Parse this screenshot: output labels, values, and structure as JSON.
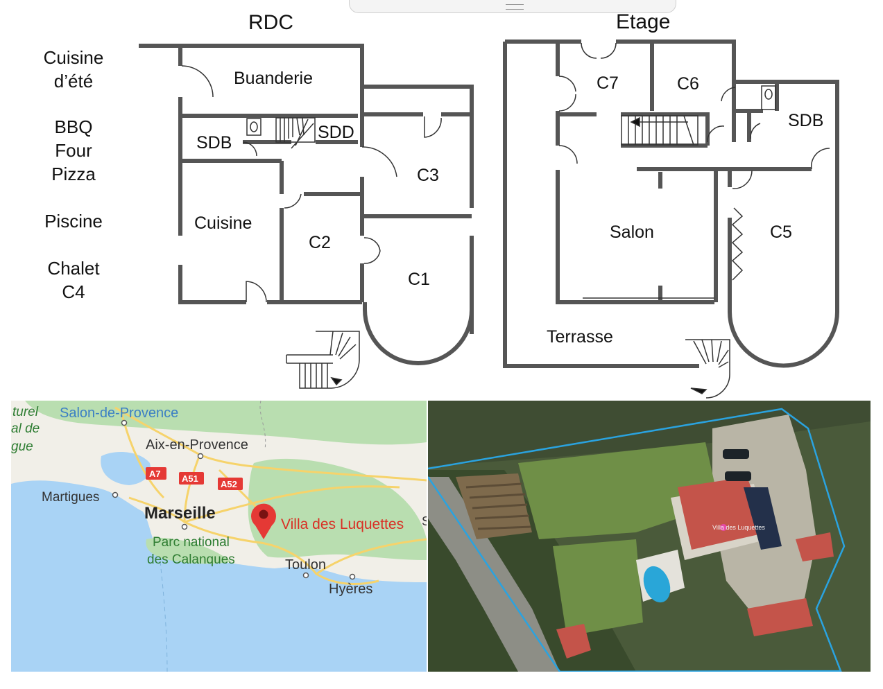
{
  "floorplan": {
    "rdc": {
      "title": "RDC",
      "rooms": {
        "buanderie": "Buanderie",
        "sdb": "SDB",
        "sdd": "SDD",
        "cuisine": "Cuisine",
        "c2": "C2",
        "c3": "C3",
        "c1": "C1"
      }
    },
    "etage": {
      "title": "Etage",
      "rooms": {
        "c7": "C7",
        "c6": "C6",
        "sdb": "SDB",
        "salon": "Salon",
        "c5": "C5",
        "terrasse": "Terrasse"
      }
    },
    "outdoor_legend": {
      "line1": "Cuisine",
      "line2": "d’été",
      "line3": "BBQ",
      "line4": "Four",
      "line5": "Pizza",
      "line6": "Piscine",
      "line7": "Chalet",
      "line8": "C4"
    }
  },
  "map": {
    "places": {
      "naturel": "turel",
      "de": "al de",
      "gue": "gue",
      "salon_de_provence": "Salon-de-Provence",
      "aix_en_provence": "Aix-en-Provence",
      "martigues": "Martigues",
      "marseille": "Marseille",
      "parc_line1": "Parc national",
      "parc_line2": "des Calanques",
      "toulon": "Toulon",
      "hyeres": "Hyères",
      "s_edge": "S"
    },
    "roads": {
      "a7": "A7",
      "a51": "A51",
      "a52": "A52"
    },
    "pin_label": "Villa des Luquettes",
    "colors": {
      "sea": "#a9d3f5",
      "land": "#f1efe8",
      "park": "#b9deb0",
      "road": "#f6d36b",
      "pin": "#e53935",
      "label": "#d93025"
    }
  },
  "satellite": {
    "villa_label": "Villa des Luquettes",
    "colors": {
      "boundary": "#2aa3e0",
      "grass": "#6f8f47",
      "roof": "#c4544a"
    }
  }
}
